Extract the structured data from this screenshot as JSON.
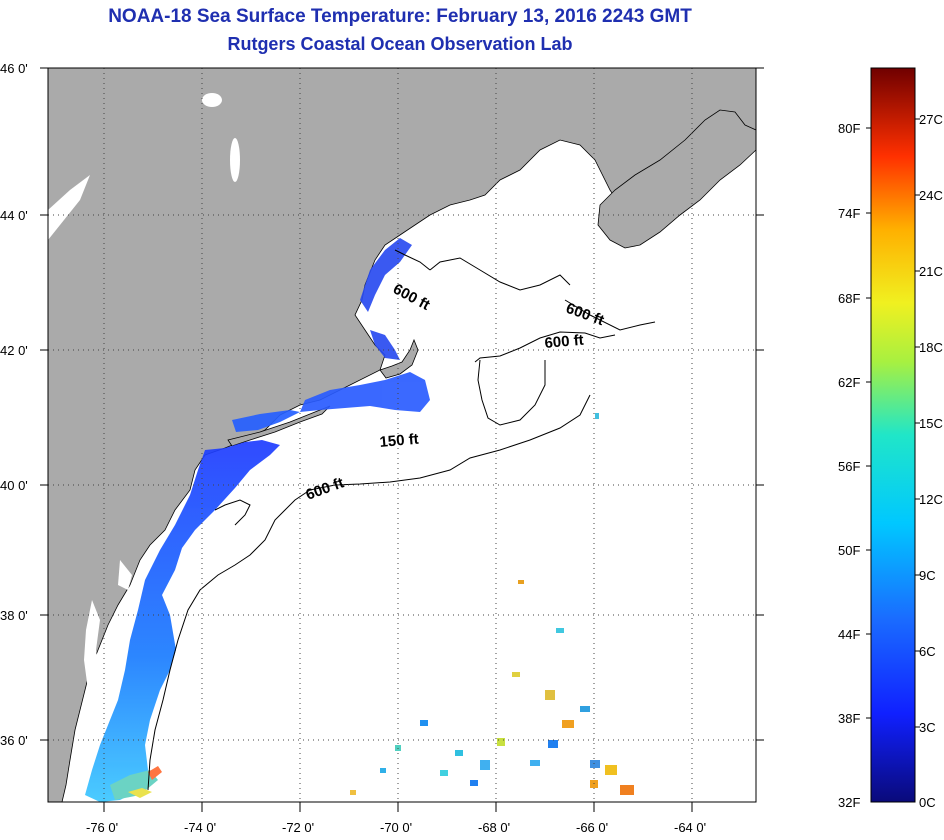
{
  "header": {
    "title": "NOAA-18 Sea Surface Temperature:  February 13, 2016 2243 GMT",
    "subtitle": "Rutgers Coastal Ocean Observation Lab"
  },
  "map": {
    "lat_labels": [
      "46 0'",
      "44 0'",
      "42 0'",
      "40 0'",
      "38 0'",
      "36 0'"
    ],
    "lon_labels": [
      "-76 0'",
      "-74 0'",
      "-72 0'",
      "-70 0'",
      "-68 0'",
      "-66 0'",
      "-64 0'"
    ],
    "lat_range": [
      35,
      46
    ],
    "lon_range": [
      -77,
      -62.5
    ],
    "contour_labels": [
      "600 ft",
      "600 ft",
      "600 ft",
      "150 ft",
      "600 ft"
    ],
    "land_color": "#aaaaaa",
    "water_color": "#ffffff",
    "grid": "dotted"
  },
  "colorbar": {
    "fahrenheit": [
      "80F",
      "74F",
      "68F",
      "62F",
      "56F",
      "50F",
      "44F",
      "38F",
      "32F"
    ],
    "celsius": [
      "27C",
      "24C",
      "21C",
      "18C",
      "15C",
      "12C",
      "9C",
      "6C",
      "3C",
      "0C"
    ]
  }
}
